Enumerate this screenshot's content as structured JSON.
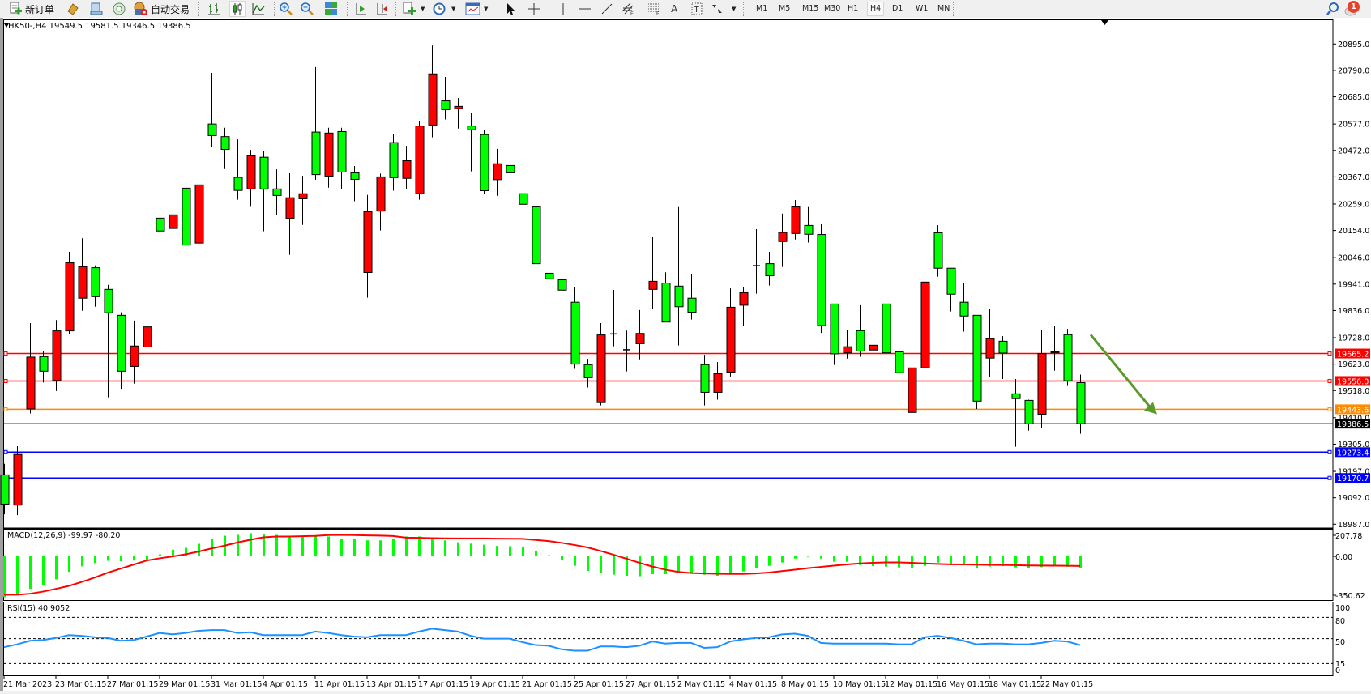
{
  "toolbar": {
    "new_order_label": "新订单",
    "autotrading_label": "自动交易",
    "timeframes": [
      "M1",
      "M5",
      "M15",
      "M30",
      "H1",
      "H4",
      "D1",
      "W1",
      "MN"
    ],
    "active_timeframe": "H4",
    "notification_count": "1"
  },
  "chart": {
    "header": "HK50-,H4  19549.5 19581.5 19346.5 19386.5",
    "symbol": "HK50-",
    "timeframe": "H4",
    "bull_color": "#ff0000",
    "bear_color": "#00ff00",
    "price_ticks": [
      "20895.0",
      "20790.0",
      "20685.0",
      "20577.0",
      "20472.0",
      "20367.0",
      "20259.0",
      "20154.0",
      "20046.0",
      "19941.0",
      "19836.0",
      "19728.0",
      "19623.0",
      "19518.0",
      "19410.0",
      "19305.0",
      "19197.0",
      "19092.0",
      "18987.0"
    ],
    "hlines": [
      {
        "price": 19665.2,
        "label": "19665.2",
        "color": "#ff0000"
      },
      {
        "price": 19556.0,
        "label": "19556.0",
        "color": "#ff0000"
      },
      {
        "price": 19443.6,
        "label": "19443.6",
        "color": "#ff8c00"
      },
      {
        "price": 19273.4,
        "label": "19273.4",
        "color": "#0000ff"
      },
      {
        "price": 19170.7,
        "label": "19170.7",
        "color": "#0000ff"
      }
    ],
    "current_price": {
      "price": 19386.5,
      "label": "19386.5",
      "color": "#000000"
    },
    "annotation_arrow": {
      "color": "#5a9a2a",
      "direction": "down-right",
      "from_price": 19740,
      "to_price": 19430
    },
    "date_labels": [
      "21 Mar 2023",
      "23 Mar 01:15",
      "27 Mar 01:15",
      "29 Mar 01:15",
      "31 Mar 01:15",
      "4 Apr 01:15",
      "11 Apr 01:15",
      "13 Apr 01:15",
      "17 Apr 01:15",
      "19 Apr 01:15",
      "21 Apr 01:15",
      "25 Apr 01:15",
      "27 Apr 01:15",
      "2 May 01:15",
      "4 May 01:15",
      "8 May 01:15",
      "10 May 01:15",
      "12 May 01:15",
      "16 May 01:15",
      "18 May 01:15",
      "22 May 01:15"
    ]
  },
  "chart_data": {
    "type": "candlestick",
    "ohlc": [
      [
        19183,
        19227,
        19026,
        19067
      ],
      [
        19063,
        19297,
        19023,
        19264
      ],
      [
        19445,
        19786,
        19427,
        19651
      ],
      [
        19653,
        19676,
        19550,
        19595
      ],
      [
        19558,
        19798,
        19516,
        19755
      ],
      [
        19755,
        20069,
        19743,
        20026
      ],
      [
        19885,
        20123,
        19835,
        20010
      ],
      [
        20006,
        20015,
        19851,
        19891
      ],
      [
        19920,
        19938,
        19491,
        19827
      ],
      [
        19817,
        19829,
        19525,
        19595
      ],
      [
        19614,
        19796,
        19546,
        19695
      ],
      [
        19691,
        19886,
        19654,
        19771
      ],
      [
        20203,
        20528,
        20115,
        20152
      ],
      [
        20162,
        20243,
        20102,
        20216
      ],
      [
        20322,
        20346,
        20045,
        20096
      ],
      [
        20104,
        20381,
        20098,
        20335
      ],
      [
        20577,
        20780,
        20485,
        20531
      ],
      [
        20527,
        20562,
        20398,
        20476
      ],
      [
        20365,
        20516,
        20276,
        20313
      ],
      [
        20319,
        20474,
        20248,
        20451
      ],
      [
        20445,
        20468,
        20151,
        20319
      ],
      [
        20319,
        20397,
        20215,
        20293
      ],
      [
        20202,
        20381,
        20057,
        20284
      ],
      [
        20280,
        20371,
        20176,
        20300
      ],
      [
        20545,
        20803,
        20356,
        20376
      ],
      [
        20370,
        20562,
        20324,
        20541
      ],
      [
        20547,
        20562,
        20317,
        20386
      ],
      [
        20383,
        20410,
        20270,
        20357
      ],
      [
        19987,
        20295,
        19887,
        20229
      ],
      [
        20231,
        20380,
        20154,
        20367
      ],
      [
        20503,
        20538,
        20312,
        20364
      ],
      [
        20361,
        20490,
        20318,
        20431
      ],
      [
        20300,
        20588,
        20276,
        20569
      ],
      [
        20573,
        20889,
        20524,
        20776
      ],
      [
        20669,
        20764,
        20595,
        20634
      ],
      [
        20638,
        20680,
        20559,
        20647
      ],
      [
        20569,
        20622,
        20389,
        20554
      ],
      [
        20535,
        20554,
        20298,
        20312
      ],
      [
        20356,
        20478,
        20292,
        20419
      ],
      [
        20412,
        20474,
        20322,
        20383
      ],
      [
        20300,
        20381,
        20192,
        20258
      ],
      [
        20248,
        20248,
        19967,
        20022
      ],
      [
        19984,
        20143,
        19899,
        19962
      ],
      [
        19958,
        19972,
        19736,
        19917
      ],
      [
        19869,
        19928,
        19604,
        19623
      ],
      [
        19621,
        19644,
        19530,
        19569
      ],
      [
        19470,
        19786,
        19459,
        19739
      ],
      [
        19743,
        19918,
        19694,
        19743
      ],
      [
        19680,
        19756,
        19594,
        19680
      ],
      [
        19704,
        19838,
        19642,
        19745
      ],
      [
        19920,
        20127,
        19841,
        19952
      ],
      [
        19945,
        19988,
        19790,
        19790
      ],
      [
        19933,
        20247,
        19697,
        19851
      ],
      [
        19885,
        19982,
        19800,
        19829
      ],
      [
        19621,
        19660,
        19459,
        19511
      ],
      [
        19511,
        19631,
        19482,
        19585
      ],
      [
        19591,
        19924,
        19574,
        19849
      ],
      [
        19857,
        19930,
        19774,
        19907
      ],
      [
        20014,
        20159,
        19903,
        20014
      ],
      [
        20022,
        20069,
        19935,
        19974
      ],
      [
        20110,
        20221,
        20009,
        20146
      ],
      [
        20142,
        20275,
        20118,
        20248
      ],
      [
        20174,
        20247,
        20106,
        20139
      ],
      [
        20138,
        20181,
        19747,
        19776
      ],
      [
        19862,
        19862,
        19620,
        19664
      ],
      [
        19668,
        19757,
        19645,
        19692
      ],
      [
        19756,
        19857,
        19652,
        19675
      ],
      [
        19679,
        19712,
        19510,
        19698
      ],
      [
        19862,
        19862,
        19567,
        19668
      ],
      [
        19672,
        19680,
        19539,
        19589
      ],
      [
        19431,
        19680,
        19407,
        19608
      ],
      [
        19608,
        20030,
        19581,
        19949
      ],
      [
        20145,
        20175,
        19970,
        20004
      ],
      [
        20004,
        20004,
        19832,
        19901
      ],
      [
        19869,
        19944,
        19752,
        19814
      ],
      [
        19817,
        19817,
        19445,
        19476
      ],
      [
        19647,
        19841,
        19571,
        19724
      ],
      [
        19714,
        19734,
        19564,
        19667
      ],
      [
        19505,
        19564,
        19295,
        19486
      ],
      [
        19479,
        19482,
        19359,
        19386
      ],
      [
        19424,
        19757,
        19369,
        19665
      ],
      [
        19668,
        19773,
        19597,
        19672
      ],
      [
        19740,
        19763,
        19536,
        19557
      ],
      [
        19549.5,
        19581.5,
        19346.5,
        19386.5
      ]
    ],
    "ylim": [
      18987,
      20895
    ],
    "macd": {
      "label": "MACD(12,26,9) -99.97 -80.20",
      "ticks": [
        "207.78",
        "0.00",
        "-350.62"
      ],
      "ylim": [
        -350.62,
        207.78
      ],
      "hist_color": "#00ff00",
      "signal_color": "#ff0000",
      "histogram": [
        -329,
        -311,
        -264,
        -231,
        -188,
        -128,
        -84,
        -58,
        -39,
        -43,
        -37,
        -32,
        13,
        50,
        65,
        97,
        136,
        162,
        169,
        182,
        175,
        169,
        162,
        162,
        162,
        156,
        134,
        134,
        125,
        125,
        136,
        156,
        156,
        147,
        125,
        110,
        99,
        90,
        80,
        78,
        75,
        36,
        6,
        -30,
        -79,
        -120,
        -137,
        -150,
        -159,
        -163,
        -146,
        -146,
        -135,
        -135,
        -150,
        -159,
        -139,
        -124,
        -98,
        -79,
        -53,
        -21,
        -8,
        -21,
        -47,
        -47,
        -73,
        -81,
        -86,
        -92,
        -98,
        -79,
        -53,
        -70,
        -75,
        -95,
        -85,
        -82,
        -92,
        -100,
        -90,
        -83,
        -86,
        -99.97
      ],
      "signal": [
        -311,
        -311,
        -303,
        -286,
        -264,
        -240,
        -208,
        -173,
        -134,
        -102,
        -69,
        -37,
        -19,
        -4,
        13,
        35,
        60,
        82,
        108,
        130,
        149,
        156,
        156,
        158,
        161,
        167,
        169,
        167,
        165,
        163,
        160,
        147,
        145,
        143,
        141,
        140,
        140,
        140,
        139,
        138,
        137,
        128,
        119,
        105,
        88,
        68,
        40,
        10,
        -22,
        -55,
        -85,
        -110,
        -128,
        -137,
        -140,
        -143,
        -144,
        -144,
        -140,
        -133,
        -122,
        -110,
        -98,
        -88,
        -78,
        -68,
        -60,
        -55,
        -52,
        -52,
        -55,
        -60,
        -64,
        -67,
        -68,
        -70,
        -71,
        -72,
        -74,
        -76,
        -77,
        -78,
        -79,
        -80.2
      ]
    },
    "rsi": {
      "label": "RSI(15) 40.9052",
      "ticks": [
        "100",
        "80",
        "50",
        "15",
        "0"
      ],
      "levels": [
        80,
        50,
        15
      ],
      "ylim": [
        0,
        100
      ],
      "color": "#1e90ff",
      "values": [
        38,
        42,
        47,
        48,
        51,
        55,
        54,
        52,
        51,
        47,
        48,
        53,
        58,
        56,
        58,
        61,
        62,
        62,
        58,
        59,
        55,
        55,
        55,
        55,
        60,
        58,
        55,
        53,
        52,
        55,
        55,
        55,
        60,
        64,
        62,
        60,
        54,
        50,
        50,
        50,
        45,
        41,
        40,
        35,
        33,
        33,
        39,
        39,
        38,
        40,
        46,
        43,
        44,
        44,
        37,
        38,
        46,
        49,
        51,
        52,
        56,
        57,
        54,
        44,
        43,
        43,
        43,
        43,
        43,
        42,
        42,
        52,
        54,
        51,
        47,
        42,
        43,
        43,
        42,
        42,
        44,
        47,
        46,
        40.9052
      ]
    }
  }
}
